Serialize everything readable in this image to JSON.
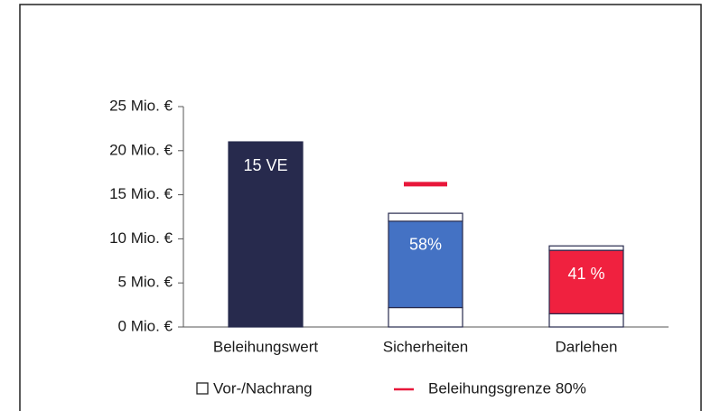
{
  "chart_data": {
    "type": "stacked_bar",
    "categories": [
      "Beleihungswert",
      "Sicherheiten",
      "Darlehen"
    ],
    "series": [
      {
        "name": "Vor-/Nachrang",
        "color": "#ffffff",
        "values": [
          null,
          2.2,
          1.5
        ]
      },
      {
        "colors": [
          "#272a4d",
          "#4472c4",
          "#f0213f"
        ],
        "values": [
          21,
          9.8,
          7.2
        ],
        "bar_labels": [
          "15 VE",
          "58%",
          "41 %"
        ]
      },
      {
        "color": "#ffffff",
        "values": [
          null,
          0.9,
          0.5
        ]
      }
    ],
    "limit": {
      "name": "Beleihungsgrenze 80%",
      "color": "#e8173a",
      "values": [
        null,
        16.2,
        null
      ]
    },
    "ylim": [
      0,
      25
    ],
    "yticks": [
      {
        "value": 0,
        "label": "0 Mio. €"
      },
      {
        "value": 5,
        "label": "5 Mio. €"
      },
      {
        "value": 10,
        "label": "10 Mio. €"
      },
      {
        "value": 15,
        "label": "15 Mio. €"
      },
      {
        "value": 20,
        "label": "20 Mio. €"
      },
      {
        "value": 25,
        "label": "25 Mio. €"
      }
    ]
  }
}
